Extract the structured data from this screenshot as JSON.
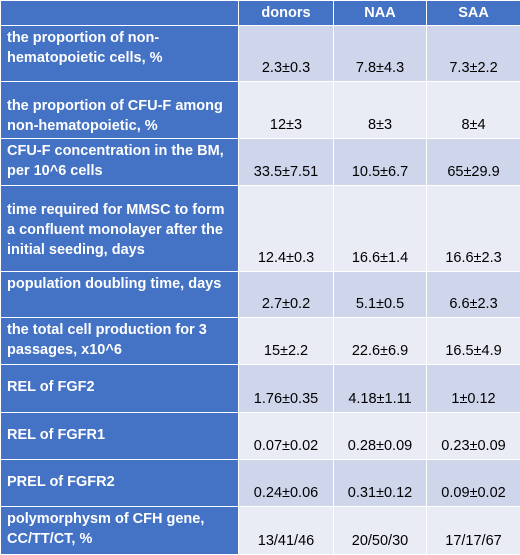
{
  "table": {
    "headers": [
      "",
      "donors",
      "NAA",
      "SAA"
    ],
    "rows": [
      {
        "label": "the proportion of non-hematopoietic cells, %",
        "cells": [
          "2.3±0.3",
          "7.8±4.3",
          "7.3±2.2"
        ]
      },
      {
        "label": "the proportion of CFU-F among non-hematopoietic, %",
        "cells": [
          "12±3",
          "8±3",
          "8±4"
        ]
      },
      {
        "label": "CFU-F concentration in the BM, per 10^6 cells",
        "cells": [
          "33.5±7.51",
          "10.5±6.7",
          "65±29.9"
        ]
      },
      {
        "label": "time required for MMSC to form a confluent monolayer after the initial seeding, days",
        "cells": [
          "12.4±0.3",
          "16.6±1.4",
          "16.6±2.3"
        ]
      },
      {
        "label": "population doubling time, days",
        "cells": [
          "2.7±0.2",
          "5.1±0.5",
          "6.6±2.3"
        ]
      },
      {
        "label": "the total cell production for 3 passages, x10^6",
        "cells": [
          "15±2.2",
          "22.6±6.9",
          "16.5±4.9"
        ]
      },
      {
        "label": "REL of FGF2",
        "cells": [
          "1.76±0.35",
          "4.18±1.11",
          "1±0.12"
        ]
      },
      {
        "label": "REL of FGFR1",
        "cells": [
          "0.07±0.02",
          "0.28±0.09",
          "0.23±0.09"
        ]
      },
      {
        "label": "PREL of FGFR2",
        "cells": [
          "0.24±0.06",
          "0.31±0.12",
          "0.09±0.02"
        ]
      },
      {
        "label": "polymorphysm of CFH gene, CC/TT/CT, %",
        "cells": [
          "13/41/46",
          "20/50/30",
          "17/17/67"
        ]
      }
    ]
  }
}
